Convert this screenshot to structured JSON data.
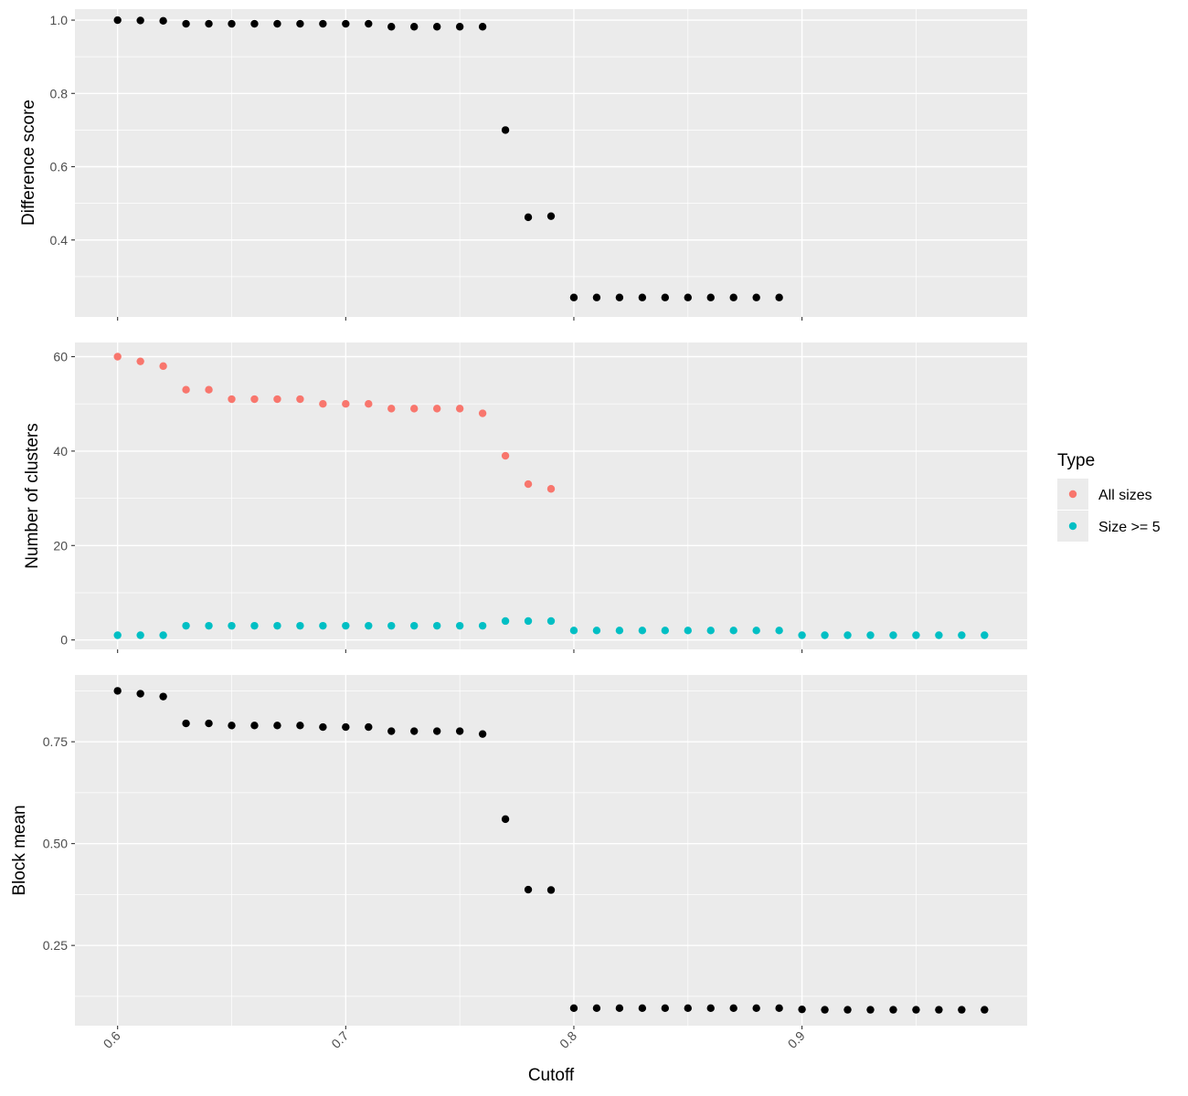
{
  "chart_data": [
    {
      "type": "scatter",
      "ylabel": "Difference score",
      "ylim": [
        0.19,
        1.03
      ],
      "yticks": [
        0.4,
        0.6,
        0.8,
        1.0
      ],
      "ytick_labels": [
        "0.4",
        "0.6",
        "0.8",
        "1.0"
      ],
      "series": [
        {
          "color": "#000000",
          "x": [
            0.6,
            0.61,
            0.62,
            0.63,
            0.64,
            0.65,
            0.66,
            0.67,
            0.68,
            0.69,
            0.7,
            0.71,
            0.72,
            0.73,
            0.74,
            0.75,
            0.76,
            0.77,
            0.78,
            0.79,
            0.8,
            0.81,
            0.82,
            0.83,
            0.84,
            0.85,
            0.86,
            0.87,
            0.88,
            0.89
          ],
          "y": [
            1.0,
            0.999,
            0.998,
            0.99,
            0.99,
            0.99,
            0.99,
            0.99,
            0.99,
            0.99,
            0.99,
            0.99,
            0.982,
            0.982,
            0.982,
            0.982,
            0.982,
            0.7,
            0.462,
            0.465,
            0.243,
            0.243,
            0.243,
            0.243,
            0.243,
            0.243,
            0.243,
            0.243,
            0.243,
            0.243
          ]
        }
      ]
    },
    {
      "type": "scatter",
      "ylabel": "Number of clusters",
      "ylim": [
        -2,
        63
      ],
      "yticks": [
        0,
        20,
        40,
        60
      ],
      "ytick_labels": [
        "0",
        "20",
        "40",
        "60"
      ],
      "legend": {
        "title": "Type",
        "position": "right"
      },
      "series": [
        {
          "name": "All sizes",
          "color": "#F8766D",
          "x": [
            0.6,
            0.61,
            0.62,
            0.63,
            0.64,
            0.65,
            0.66,
            0.67,
            0.68,
            0.69,
            0.7,
            0.71,
            0.72,
            0.73,
            0.74,
            0.75,
            0.76,
            0.77,
            0.78,
            0.79
          ],
          "y": [
            60,
            59,
            58,
            53,
            53,
            51,
            51,
            51,
            51,
            50,
            50,
            50,
            49,
            49,
            49,
            49,
            48,
            39,
            33,
            32
          ]
        },
        {
          "name": "Size >= 5",
          "color": "#00BFC4",
          "x": [
            0.6,
            0.61,
            0.62,
            0.63,
            0.64,
            0.65,
            0.66,
            0.67,
            0.68,
            0.69,
            0.7,
            0.71,
            0.72,
            0.73,
            0.74,
            0.75,
            0.76,
            0.77,
            0.78,
            0.79,
            0.8,
            0.81,
            0.82,
            0.83,
            0.84,
            0.85,
            0.86,
            0.87,
            0.88,
            0.89,
            0.9,
            0.91,
            0.92,
            0.93,
            0.94,
            0.95,
            0.96,
            0.97,
            0.98
          ],
          "y": [
            1,
            1,
            1,
            3,
            3,
            3,
            3,
            3,
            3,
            3,
            3,
            3,
            3,
            3,
            3,
            3,
            3,
            4,
            4,
            4,
            2,
            2,
            2,
            2,
            2,
            2,
            2,
            2,
            2,
            2,
            1,
            1,
            1,
            1,
            1,
            1,
            1,
            1,
            1
          ]
        }
      ]
    },
    {
      "type": "scatter",
      "ylabel": "Block mean",
      "xlabel": "Cutoff",
      "ylim": [
        0.053,
        0.914
      ],
      "yticks": [
        0.25,
        0.5,
        0.75
      ],
      "ytick_labels": [
        "0.25",
        "0.50",
        "0.75"
      ],
      "series": [
        {
          "color": "#000000",
          "x": [
            0.6,
            0.61,
            0.62,
            0.63,
            0.64,
            0.65,
            0.66,
            0.67,
            0.68,
            0.69,
            0.7,
            0.71,
            0.72,
            0.73,
            0.74,
            0.75,
            0.76,
            0.77,
            0.78,
            0.79,
            0.8,
            0.81,
            0.82,
            0.83,
            0.84,
            0.85,
            0.86,
            0.87,
            0.88,
            0.89,
            0.9,
            0.91,
            0.92,
            0.93,
            0.94,
            0.95,
            0.96,
            0.97,
            0.98
          ],
          "y": [
            0.875,
            0.868,
            0.861,
            0.795,
            0.795,
            0.79,
            0.79,
            0.79,
            0.79,
            0.786,
            0.786,
            0.786,
            0.776,
            0.776,
            0.776,
            0.776,
            0.769,
            0.56,
            0.387,
            0.386,
            0.096,
            0.096,
            0.096,
            0.096,
            0.096,
            0.096,
            0.096,
            0.096,
            0.096,
            0.096,
            0.093,
            0.092,
            0.092,
            0.092,
            0.092,
            0.092,
            0.092,
            0.092,
            0.092
          ]
        }
      ]
    }
  ],
  "x_axis": {
    "label": "Cutoff",
    "lim": [
      0.5813,
      0.9987
    ],
    "ticks": [
      0.6,
      0.7,
      0.8,
      0.9
    ],
    "tick_labels": [
      "0.6",
      "0.7",
      "0.8",
      "0.9"
    ]
  },
  "colors": {
    "panel_background": "#EBEBEB",
    "grid": "#FFFFFF",
    "all_sizes": "#F8766D",
    "size_ge_5": "#00BFC4",
    "points": "#000000"
  }
}
